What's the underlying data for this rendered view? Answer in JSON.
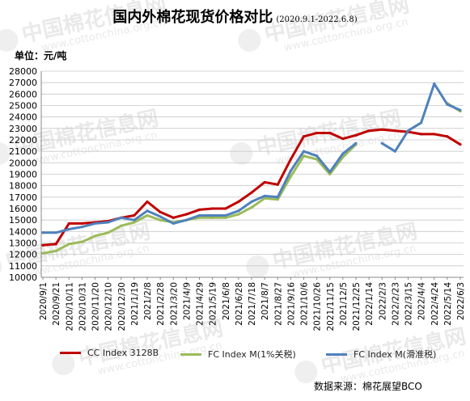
{
  "title": "国内外棉花现货价格对比",
  "title_range": "(2020.9.1-2022.6.8)",
  "unit_label": "单位：元/吨",
  "source": "数据来源：棉花展望BCO",
  "watermark": {
    "brand": "中国棉花信息网",
    "url": "www.cottonchina.org.cn"
  },
  "colors": {
    "cc": "#c00000",
    "fc1": "#9bbb59",
    "fcslide": "#4f81bd"
  },
  "chart_data": {
    "type": "line",
    "title": "国内外棉花现货价格对比",
    "ylim": [
      10000,
      28000
    ],
    "ytick_step": 1000,
    "x_categories": [
      "2020/9/1",
      "2020/9/21",
      "2020/10/11",
      "2020/10/31",
      "2020/11/20",
      "2020/12/10",
      "2020/12/30",
      "2021/1/19",
      "2021/2/8",
      "2021/2/28",
      "2021/3/20",
      "2021/4/9",
      "2021/4/29",
      "2021/5/19",
      "2021/6/8",
      "2021/6/28",
      "2021/7/18",
      "2021/8/7",
      "2021/8/27",
      "2021/9/16",
      "2021/10/6",
      "2021/10/26",
      "2021/11/15",
      "2021/12/5",
      "2021/12/25",
      "2022/1/14",
      "2022/2/3",
      "2022/2/23",
      "2022/3/15",
      "2022/4/4",
      "2022/4/24",
      "2022/5/14",
      "2022/6/3"
    ],
    "grid": "horizontal",
    "legend": "bottom",
    "series": [
      {
        "name": "CC Index 3128B",
        "color": "#c00000",
        "values": [
          12800,
          12900,
          14700,
          14700,
          14800,
          14900,
          15200,
          15400,
          16600,
          15700,
          15200,
          15500,
          15900,
          16000,
          16000,
          16600,
          17400,
          18300,
          18100,
          20300,
          22300,
          22600,
          22600,
          22100,
          22400,
          22800,
          22900,
          22800,
          22700,
          22500,
          22500,
          22300,
          21600
        ]
      },
      {
        "name": "FC Index M(1%关税)",
        "color": "#9bbb59",
        "values": [
          12100,
          12300,
          12900,
          13100,
          13600,
          13900,
          14500,
          14800,
          15400,
          15000,
          14800,
          15000,
          15200,
          15200,
          15200,
          15500,
          16100,
          16900,
          16800,
          18800,
          20600,
          20300,
          19000,
          20500,
          21600,
          null,
          null,
          null,
          null,
          null,
          null,
          25200,
          24500
        ]
      },
      {
        "name": "FC Index M(滑准税)",
        "color": "#4f81bd",
        "values": [
          13900,
          13900,
          14200,
          14400,
          14700,
          14800,
          15200,
          15000,
          15800,
          15300,
          14700,
          15000,
          15400,
          15400,
          15400,
          15800,
          16600,
          17100,
          17000,
          19300,
          21000,
          20600,
          19200,
          20800,
          21700,
          null,
          21700,
          21000,
          22800,
          23500,
          26900,
          25100,
          24600
        ]
      }
    ]
  }
}
